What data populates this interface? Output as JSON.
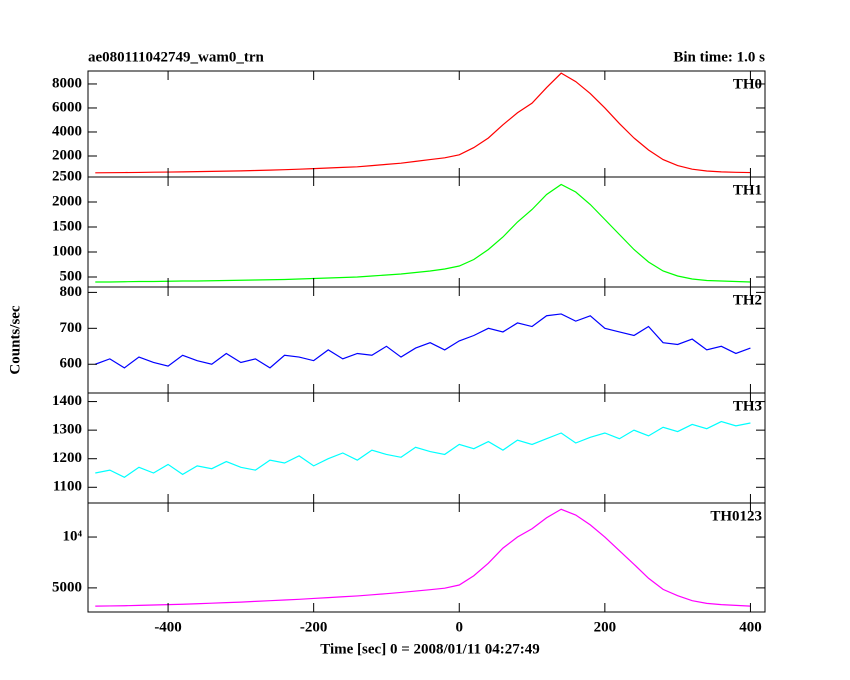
{
  "chart_data": [
    {
      "type": "line",
      "title": "ae080111042749_wam0_trn",
      "subtitle": "Bin time: 1.0 s",
      "x": [
        -500,
        -480,
        -460,
        -440,
        -420,
        -400,
        -380,
        -360,
        -340,
        -320,
        -300,
        -280,
        -260,
        -240,
        -220,
        -200,
        -180,
        -160,
        -140,
        -120,
        -100,
        -80,
        -60,
        -40,
        -20,
        0,
        20,
        40,
        60,
        80,
        100,
        120,
        140,
        160,
        180,
        200,
        220,
        240,
        260,
        280,
        300,
        320,
        340,
        360,
        380,
        400
      ],
      "series": [
        {
          "name": "TH0",
          "color": "#ff0000",
          "values": [
            600,
            610,
            620,
            630,
            650,
            660,
            680,
            700,
            720,
            740,
            760,
            790,
            820,
            860,
            900,
            950,
            1000,
            1050,
            1100,
            1200,
            1300,
            1400,
            1550,
            1700,
            1850,
            2100,
            2700,
            3500,
            4600,
            5600,
            6400,
            7700,
            8900,
            8200,
            7200,
            6000,
            4700,
            3500,
            2500,
            1700,
            1200,
            900,
            750,
            680,
            640,
            620
          ]
        }
      ],
      "xlim": [
        -510,
        420
      ],
      "ylim": [
        250,
        9080
      ],
      "yticks": [
        2000,
        4000,
        6000,
        8000
      ]
    },
    {
      "type": "line",
      "x": [
        -500,
        -480,
        -460,
        -440,
        -420,
        -400,
        -380,
        -360,
        -340,
        -320,
        -300,
        -280,
        -260,
        -240,
        -220,
        -200,
        -180,
        -160,
        -140,
        -120,
        -100,
        -80,
        -60,
        -40,
        -20,
        0,
        20,
        40,
        60,
        80,
        100,
        120,
        140,
        160,
        180,
        200,
        220,
        240,
        260,
        280,
        300,
        320,
        340,
        360,
        380,
        400
      ],
      "series": [
        {
          "name": "TH1",
          "color": "#00ff00",
          "values": [
            400,
            400,
            405,
            410,
            410,
            415,
            420,
            420,
            425,
            430,
            435,
            440,
            445,
            450,
            460,
            470,
            480,
            490,
            500,
            520,
            540,
            560,
            590,
            620,
            660,
            720,
            850,
            1050,
            1300,
            1600,
            1850,
            2150,
            2350,
            2200,
            1950,
            1650,
            1350,
            1050,
            800,
            620,
            520,
            460,
            430,
            420,
            410,
            400
          ]
        }
      ],
      "xlim": [
        -510,
        420
      ],
      "ylim": [
        300,
        2500
      ],
      "yticks": [
        500,
        1000,
        1500,
        2000,
        2500
      ]
    },
    {
      "type": "line",
      "ylabel": "Counts/sec",
      "x": [
        -500,
        -480,
        -460,
        -440,
        -420,
        -400,
        -380,
        -360,
        -340,
        -320,
        -300,
        -280,
        -260,
        -240,
        -220,
        -200,
        -180,
        -160,
        -140,
        -120,
        -100,
        -80,
        -60,
        -40,
        -20,
        0,
        20,
        40,
        60,
        80,
        100,
        120,
        140,
        160,
        180,
        200,
        220,
        240,
        260,
        280,
        300,
        320,
        340,
        360,
        380,
        400
      ],
      "series": [
        {
          "name": "TH2",
          "color": "#0000ff",
          "values": [
            600,
            615,
            590,
            620,
            605,
            595,
            625,
            610,
            600,
            630,
            605,
            615,
            590,
            625,
            620,
            610,
            640,
            615,
            630,
            625,
            650,
            620,
            645,
            660,
            640,
            665,
            680,
            700,
            690,
            715,
            705,
            735,
            740,
            720,
            735,
            700,
            690,
            680,
            705,
            660,
            655,
            670,
            640,
            650,
            630,
            645
          ]
        }
      ],
      "xlim": [
        -510,
        420
      ],
      "ylim": [
        520,
        815
      ],
      "yticks": [
        600,
        700,
        800
      ]
    },
    {
      "type": "line",
      "x": [
        -500,
        -480,
        -460,
        -440,
        -420,
        -400,
        -380,
        -360,
        -340,
        -320,
        -300,
        -280,
        -260,
        -240,
        -220,
        -200,
        -180,
        -160,
        -140,
        -120,
        -100,
        -80,
        -60,
        -40,
        -20,
        0,
        20,
        40,
        60,
        80,
        100,
        120,
        140,
        160,
        180,
        200,
        220,
        240,
        260,
        280,
        300,
        320,
        340,
        360,
        380,
        400
      ],
      "series": [
        {
          "name": "TH3",
          "color": "#00ffff",
          "values": [
            1150,
            1160,
            1135,
            1170,
            1150,
            1180,
            1145,
            1175,
            1165,
            1190,
            1170,
            1160,
            1195,
            1185,
            1210,
            1175,
            1200,
            1220,
            1195,
            1230,
            1215,
            1205,
            1240,
            1225,
            1215,
            1250,
            1235,
            1260,
            1230,
            1265,
            1250,
            1270,
            1290,
            1255,
            1275,
            1290,
            1270,
            1300,
            1280,
            1310,
            1295,
            1320,
            1305,
            1330,
            1315,
            1325
          ]
        }
      ],
      "xlim": [
        -510,
        420
      ],
      "ylim": [
        1045,
        1430
      ],
      "yticks": [
        1100,
        1200,
        1300,
        1400
      ]
    },
    {
      "type": "line",
      "xlabel": "Time [sec] 0 = 2008/01/11 04:27:49",
      "x": [
        -500,
        -480,
        -460,
        -440,
        -420,
        -400,
        -380,
        -360,
        -340,
        -320,
        -300,
        -280,
        -260,
        -240,
        -220,
        -200,
        -180,
        -160,
        -140,
        -120,
        -100,
        -80,
        -60,
        -40,
        -20,
        0,
        20,
        40,
        60,
        80,
        100,
        120,
        140,
        160,
        180,
        200,
        220,
        240,
        260,
        280,
        300,
        320,
        340,
        360,
        380,
        400
      ],
      "series": [
        {
          "name": "TH0123",
          "color": "#ff00ff",
          "values": [
            3900,
            3910,
            3920,
            3940,
            3960,
            3980,
            4000,
            4030,
            4060,
            4090,
            4120,
            4160,
            4200,
            4240,
            4280,
            4330,
            4380,
            4430,
            4480,
            4550,
            4620,
            4700,
            4790,
            4880,
            4980,
            5200,
            5900,
            7000,
            8600,
            10000,
            11200,
            13000,
            14600,
            13500,
            11800,
            10000,
            8300,
            6900,
            5700,
            4900,
            4500,
            4200,
            4050,
            3980,
            3940,
            3900
          ]
        }
      ],
      "xlim": [
        -510,
        420
      ],
      "ylim": [
        3600,
        15900
      ],
      "log_y": true,
      "yticks": [
        5000,
        {
          "value": 10000,
          "label": "10⁴"
        }
      ],
      "xticks": [
        -400,
        -200,
        0,
        200,
        400
      ]
    }
  ]
}
